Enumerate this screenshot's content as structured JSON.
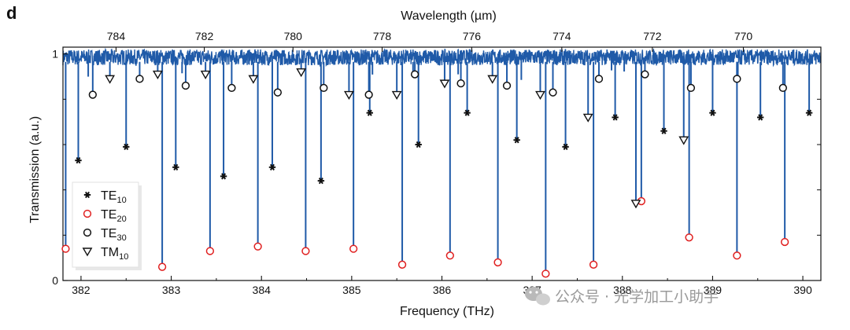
{
  "chart_data": {
    "type": "line",
    "panel_label": "d",
    "xlabel": "Frequency (THz)",
    "ylabel": "Transmission (a.u.)",
    "x2label": "Wavelength (µm)",
    "xlim": [
      381.8,
      390.2
    ],
    "ylim": [
      0,
      1.03
    ],
    "x_ticks": [
      382,
      383,
      384,
      385,
      386,
      387,
      388,
      389,
      390
    ],
    "x_tick_labels": [
      "382",
      "383",
      "384",
      "385",
      "386",
      "387",
      "388",
      "389",
      "390"
    ],
    "y_ticks": [
      0,
      1
    ],
    "y_tick_labels": [
      "0",
      "1"
    ],
    "top_ticks_nm": [
      784,
      782,
      780,
      778,
      776,
      774,
      772,
      770
    ],
    "top_tick_labels": [
      "784",
      "782",
      "780",
      "778",
      "776",
      "774",
      "772",
      "770"
    ],
    "baseline": 0.985,
    "series_color": "#1f5aa8",
    "markers": {
      "TE10": {
        "symbol": "asterisk",
        "color": "#111111",
        "x": [
          381.97,
          382.5,
          383.05,
          383.58,
          384.12,
          384.66,
          385.2,
          385.74,
          386.28,
          386.83,
          387.37,
          387.92,
          388.46,
          389.0,
          389.53,
          390.07
        ],
        "y": [
          0.53,
          0.59,
          0.5,
          0.46,
          0.5,
          0.44,
          0.74,
          0.6,
          0.74,
          0.62,
          0.59,
          0.72,
          0.66,
          0.74,
          0.72,
          0.74
        ]
      },
      "TE20": {
        "symbol": "circle-open",
        "color": "#e02020",
        "x": [
          381.83,
          382.9,
          383.43,
          383.96,
          384.49,
          385.02,
          385.56,
          386.09,
          386.62,
          387.15,
          387.68,
          388.21,
          388.74,
          389.27,
          389.8
        ],
        "y": [
          0.14,
          0.06,
          0.13,
          0.15,
          0.13,
          0.14,
          0.07,
          0.11,
          0.08,
          0.03,
          0.07,
          0.35,
          0.19,
          0.11,
          0.17
        ]
      },
      "TE30": {
        "symbol": "circle-open",
        "color": "#111111",
        "x": [
          382.13,
          382.65,
          383.16,
          383.67,
          384.18,
          384.69,
          385.19,
          385.7,
          386.21,
          386.72,
          387.23,
          387.74,
          388.25,
          388.76,
          389.27,
          389.78
        ],
        "y": [
          0.82,
          0.89,
          0.86,
          0.85,
          0.83,
          0.85,
          0.82,
          0.91,
          0.87,
          0.86,
          0.83,
          0.89,
          0.91,
          0.85,
          0.89,
          0.85
        ]
      },
      "TM10": {
        "symbol": "triangle-down-open",
        "color": "#111111",
        "x": [
          382.32,
          382.85,
          383.38,
          383.91,
          384.44,
          384.97,
          385.5,
          386.03,
          386.56,
          387.09,
          387.62,
          388.15,
          388.68
        ],
        "y": [
          0.89,
          0.91,
          0.91,
          0.89,
          0.92,
          0.82,
          0.82,
          0.87,
          0.89,
          0.82,
          0.72,
          0.34,
          0.62
        ]
      }
    },
    "legend": [
      {
        "label": "TE",
        "sub": "10",
        "series": "TE10"
      },
      {
        "label": "TE",
        "sub": "20",
        "series": "TE20"
      },
      {
        "label": "TE",
        "sub": "30",
        "series": "TE30"
      },
      {
        "label": "TM",
        "sub": "10",
        "series": "TM10"
      }
    ],
    "legend_position": "lower-left"
  },
  "watermark": {
    "text": "公众号 · 光学加工小助手",
    "icon": "wechat-icon"
  }
}
